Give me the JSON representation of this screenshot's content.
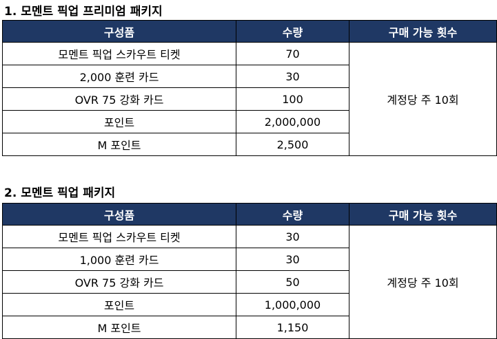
{
  "sections": [
    {
      "title": "1. 모멘트 픽업 프리미엄 패키지",
      "headers": [
        "구성품",
        "수량",
        "구매 가능 횟수"
      ],
      "rows": [
        [
          "모멘트 픽업 스카우트 티켓",
          "70"
        ],
        [
          "2,000 훈련 카드",
          "30"
        ],
        [
          "OVR 75 강화 카드",
          "100"
        ],
        [
          "포인트",
          "2,000,000"
        ],
        [
          "M 포인트",
          "2,500"
        ]
      ],
      "limit": "계정당 주 10회"
    },
    {
      "title": "2. 모멘트 픽업 패키지",
      "headers": [
        "구성품",
        "수량",
        "구매 가능 횟수"
      ],
      "rows": [
        [
          "모멘트 픽업 스카우트 티켓",
          "30"
        ],
        [
          "1,000 훈련 카드",
          "30"
        ],
        [
          "OVR 75 강화 카드",
          "50"
        ],
        [
          "포인트",
          "1,000,000"
        ],
        [
          "M 포인트",
          "1,150"
        ]
      ],
      "limit": "계정당 주 10회"
    }
  ],
  "colors": {
    "header_bg": "#1f3864"
  }
}
